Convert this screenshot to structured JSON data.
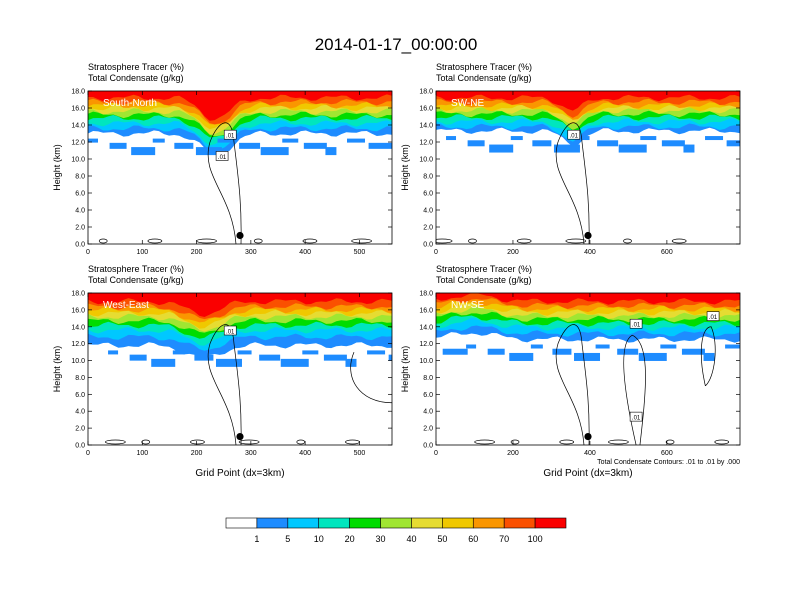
{
  "title": "2014-01-17_00:00:00",
  "panel_header_line1": "Stratosphere Tracer   (%)",
  "panel_header_line2": "Total Condensate   (g/kg)",
  "contour_note": "Total Condensate Contours: .01 to .01 by .000",
  "colorbar": {
    "colors": [
      "#ffffff",
      "#1e8cff",
      "#00c8ff",
      "#00e6be",
      "#00dc00",
      "#a0e632",
      "#e6dc32",
      "#f0c800",
      "#fa9600",
      "#fa5000",
      "#fa0000"
    ],
    "labels": [
      "1",
      "5",
      "10",
      "20",
      "30",
      "40",
      "50",
      "60",
      "70",
      "100"
    ]
  },
  "chart_data": [
    {
      "type": "heatmap",
      "panel": "top-left",
      "label": "South-North",
      "title_line1": "Stratosphere Tracer   (%)",
      "title_line2": "Total Condensate   (g/kg)",
      "ylabel": "Height (km)",
      "xlabel": "",
      "xlim": [
        0,
        560
      ],
      "ylim": [
        0,
        18
      ],
      "xticks": [
        0,
        100,
        200,
        300,
        400,
        500
      ],
      "yticks": [
        "0.0",
        "2.0",
        "4.0",
        "6.0",
        "8.0",
        "10.0",
        "12.0",
        "14.0",
        "16.0",
        "18.0"
      ],
      "marker": {
        "x": 280,
        "y": 1.0
      },
      "contour_labels": [
        {
          "text": ".01",
          "x": 262,
          "y": 12.8
        },
        {
          "text": ".01",
          "x": 247,
          "y": 10.3
        }
      ]
    },
    {
      "type": "heatmap",
      "panel": "top-right",
      "label": "SW-NE",
      "title_line1": "Stratosphere Tracer   (%)",
      "title_line2": "Total Condensate   (g/kg)",
      "ylabel": "Height (km)",
      "xlabel": "",
      "xlim": [
        0,
        790
      ],
      "ylim": [
        0,
        18
      ],
      "xticks": [
        0,
        200,
        400,
        600
      ],
      "yticks": [
        "0.0",
        "2.0",
        "4.0",
        "6.0",
        "8.0",
        "10.0",
        "12.0",
        "14.0",
        "16.0",
        "18.0"
      ],
      "marker": {
        "x": 395,
        "y": 1.0
      },
      "contour_labels": [
        {
          "text": ".01",
          "x": 358,
          "y": 12.8
        }
      ]
    },
    {
      "type": "heatmap",
      "panel": "bottom-left",
      "label": "West-East",
      "title_line1": "Stratosphere Tracer   (%)",
      "title_line2": "Total Condensate   (g/kg)",
      "ylabel": "Height (km)",
      "xlabel": "Grid Point (dx=3km)",
      "xlim": [
        0,
        560
      ],
      "ylim": [
        0,
        18
      ],
      "xticks": [
        0,
        100,
        200,
        300,
        400,
        500
      ],
      "yticks": [
        "0.0",
        "2.0",
        "4.0",
        "6.0",
        "8.0",
        "10.0",
        "12.0",
        "14.0",
        "16.0",
        "18.0"
      ],
      "marker": {
        "x": 280,
        "y": 1.0
      },
      "contour_labels": [
        {
          "text": ".01",
          "x": 262,
          "y": 13.5
        }
      ]
    },
    {
      "type": "heatmap",
      "panel": "bottom-right",
      "label": "NW-SE",
      "title_line1": "Stratosphere Tracer   (%)",
      "title_line2": "Total Condensate   (g/kg)",
      "ylabel": "Height (km)",
      "xlabel": "Grid Point (dx=3km)",
      "xlim": [
        0,
        790
      ],
      "ylim": [
        0,
        18
      ],
      "xticks": [
        0,
        200,
        400,
        600
      ],
      "yticks": [
        "0.0",
        "2.0",
        "4.0",
        "6.0",
        "8.0",
        "10.0",
        "12.0",
        "14.0",
        "16.0",
        "18.0"
      ],
      "marker": {
        "x": 395,
        "y": 1.0
      },
      "contour_labels": [
        {
          "text": ".01",
          "x": 520,
          "y": 14.3
        },
        {
          "text": ".01",
          "x": 520,
          "y": 3.3
        },
        {
          "text": ".01",
          "x": 720,
          "y": 15.2
        }
      ]
    }
  ]
}
